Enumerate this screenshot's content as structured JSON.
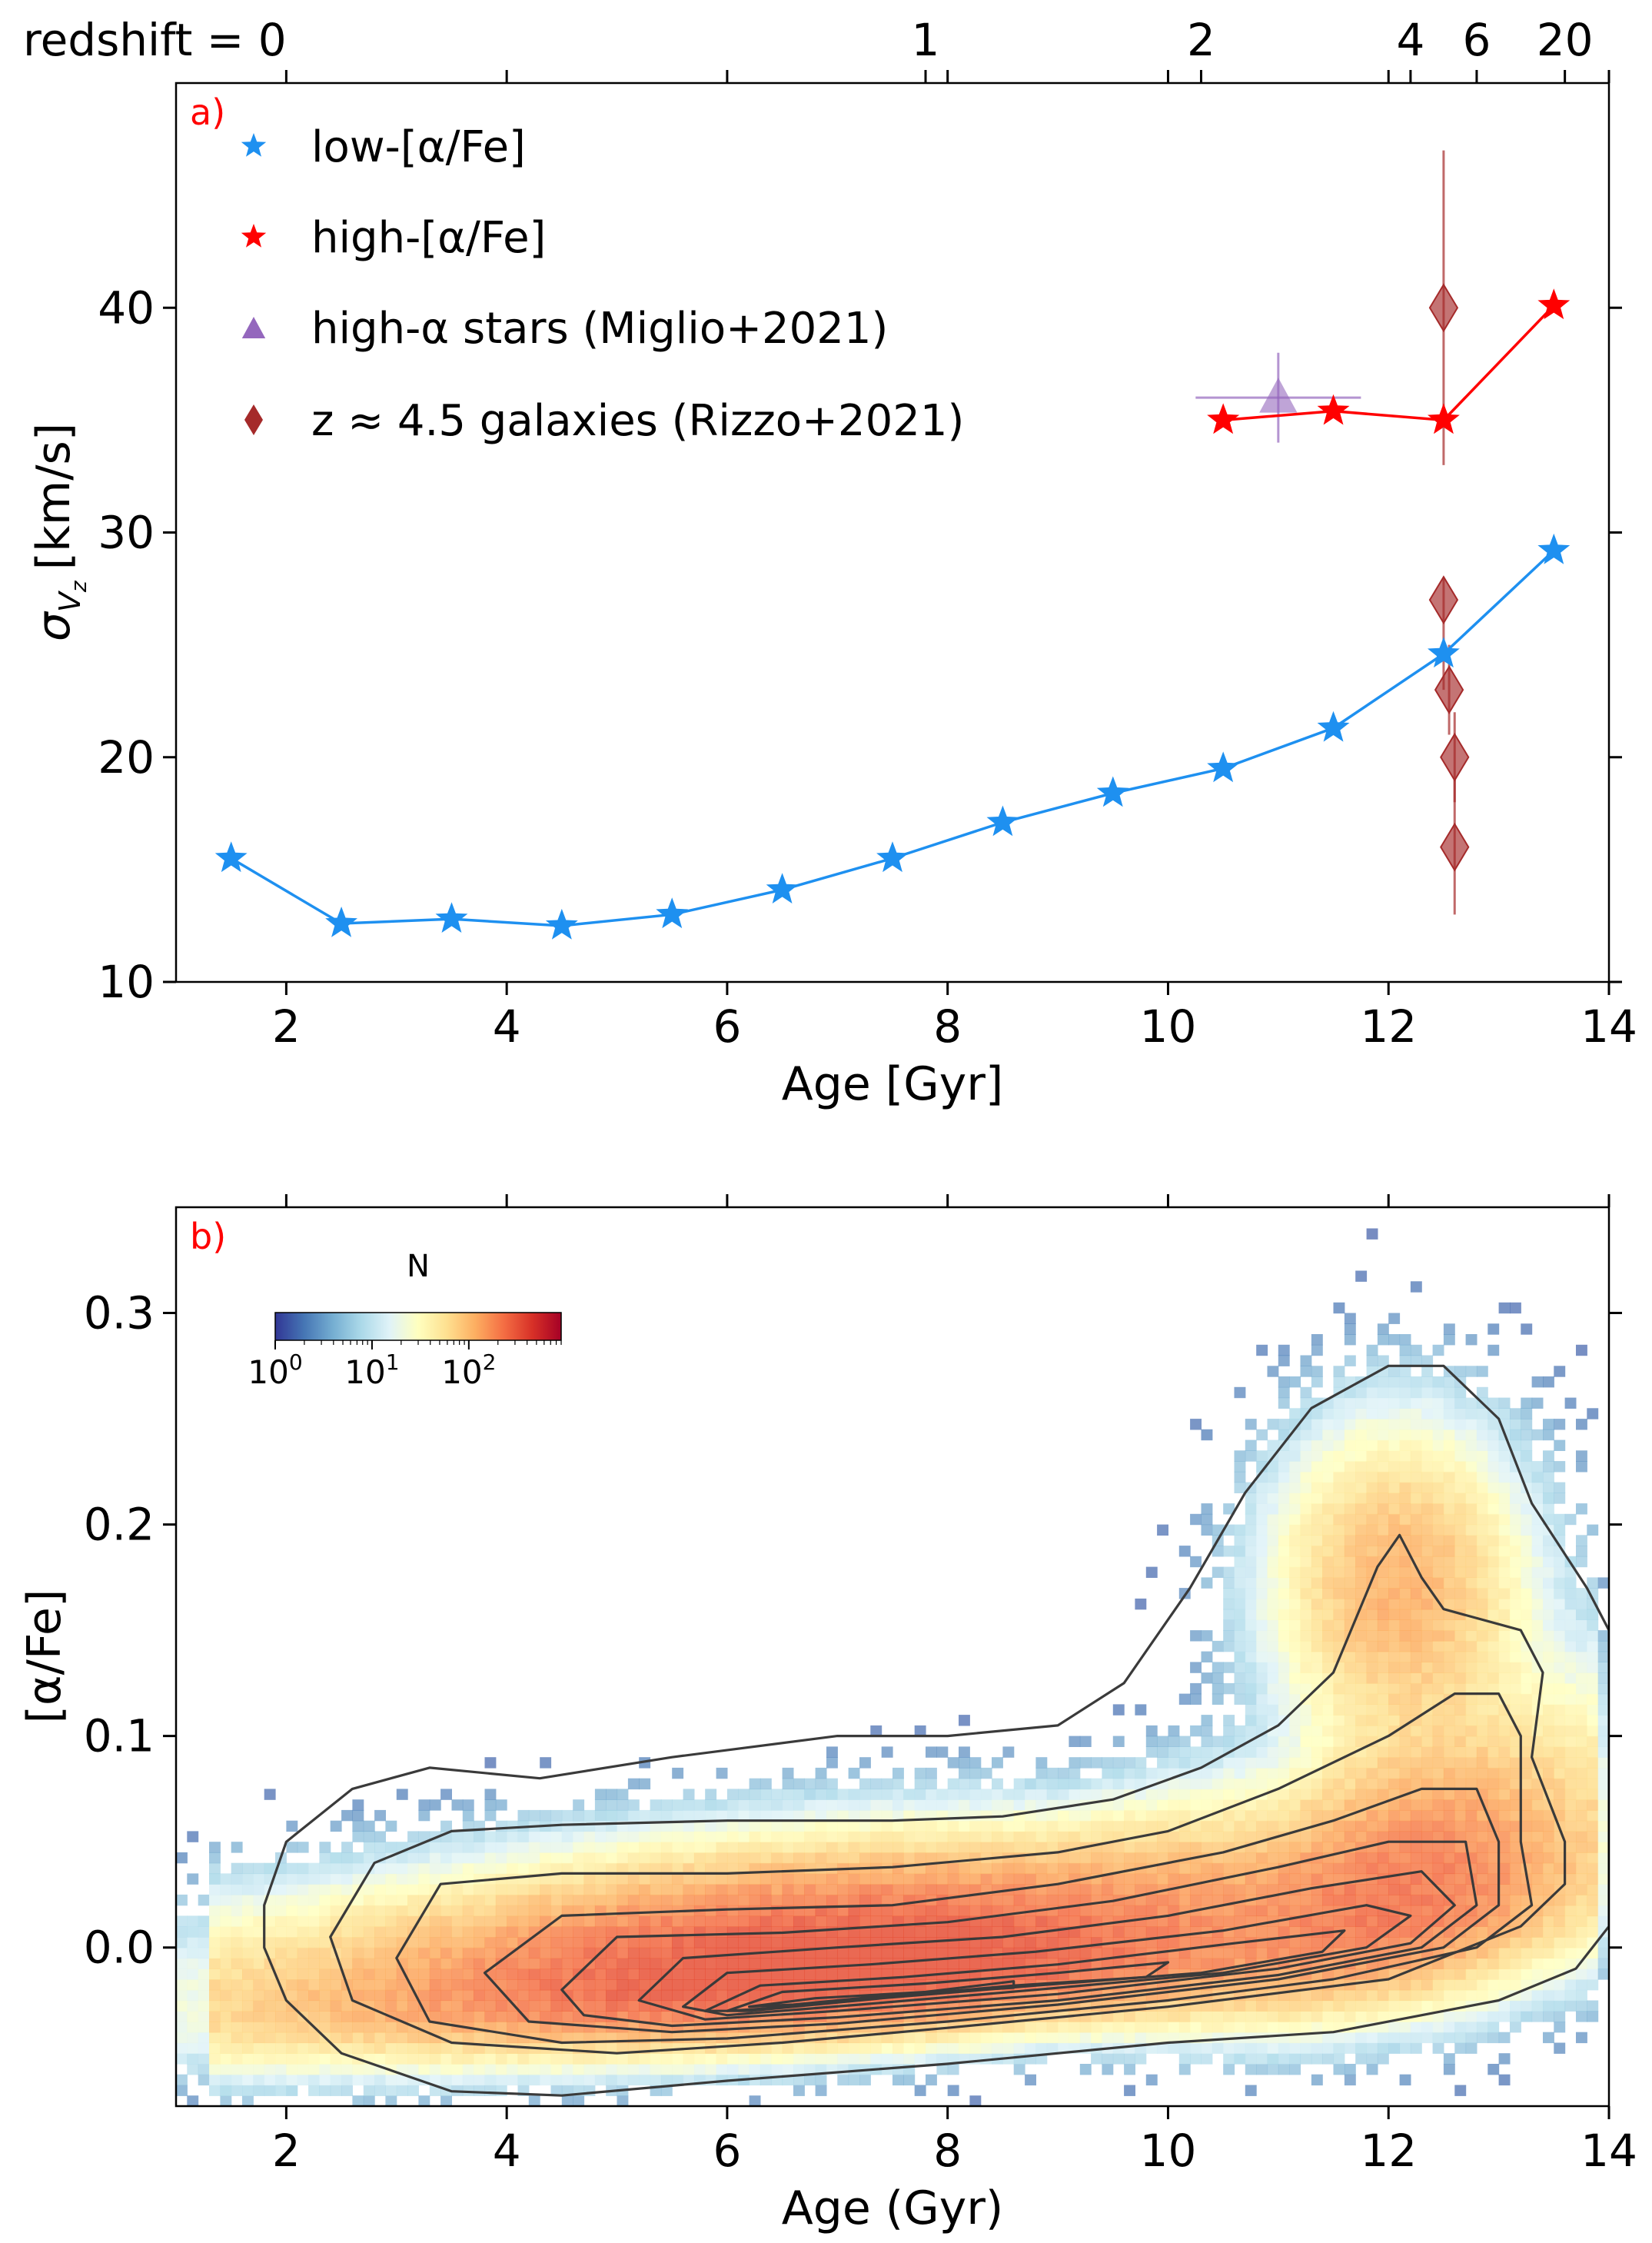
{
  "chart_data": [
    {
      "type": "line",
      "panel_label": "a)",
      "xlabel": "Age [Gyr]",
      "ylabel": "σ_Vz [km/s]",
      "ylabel_main": "σ",
      "ylabel_sub": "V",
      "ylabel_subsub": "z",
      "ylabel_unit": "[km/s]",
      "xlim": [
        1,
        14
      ],
      "ylim": [
        10,
        50
      ],
      "xticks": [
        2,
        4,
        6,
        8,
        10,
        12,
        14
      ],
      "yticks": [
        10,
        20,
        30,
        40
      ],
      "top_axis": {
        "label_prefix": "redshift = ",
        "ticks": [
          {
            "label": "0",
            "age": 1.0
          },
          {
            "label": "1",
            "age": 7.8
          },
          {
            "label": "2",
            "age": 10.3
          },
          {
            "label": "4",
            "age": 12.2
          },
          {
            "label": "6",
            "age": 12.8
          },
          {
            "label": "20",
            "age": 13.6
          }
        ]
      },
      "series": [
        {
          "name": "low-[α/Fe]",
          "color": "#1e90f0",
          "marker": "star",
          "x": [
            1.5,
            2.5,
            3.5,
            4.5,
            5.5,
            6.5,
            7.5,
            8.5,
            9.5,
            10.5,
            11.5,
            12.5,
            13.5
          ],
          "y": [
            15.5,
            12.6,
            12.8,
            12.5,
            13.0,
            14.1,
            15.5,
            17.1,
            18.4,
            19.5,
            21.3,
            24.6,
            29.2
          ]
        },
        {
          "name": "high-[α/Fe]",
          "color": "#ff0000",
          "marker": "star",
          "x": [
            10.5,
            11.5,
            12.5,
            13.5
          ],
          "y": [
            35.0,
            35.4,
            35.0,
            40.1
          ]
        },
        {
          "name": "high-α stars (Miglio+2021)",
          "color": "#9467bd",
          "marker": "triangle",
          "x": [
            11.0
          ],
          "y": [
            36.0
          ],
          "xerr": [
            0.75
          ],
          "yerr": [
            2.0
          ]
        },
        {
          "name": "z ≈ 4.5 galaxies (Rizzo+2021)",
          "color": "#a52a2a",
          "marker": "diamond",
          "points": [
            {
              "x": 12.5,
              "y": 40.0,
              "lo": 33.0,
              "hi": 47.0
            },
            {
              "x": 12.5,
              "y": 27.0,
              "lo": 23.0,
              "hi": 28.0
            },
            {
              "x": 12.55,
              "y": 23.0,
              "lo": 21.0,
              "hi": 25.0
            },
            {
              "x": 12.6,
              "y": 20.0,
              "lo": 18.0,
              "hi": 22.0
            },
            {
              "x": 12.6,
              "y": 16.0,
              "lo": 13.0,
              "hi": 19.0
            }
          ]
        }
      ]
    },
    {
      "type": "heatmap",
      "panel_label": "b)",
      "xlabel": "Age (Gyr)",
      "ylabel": "[α/Fe]",
      "xlim": [
        1,
        14
      ],
      "ylim": [
        -0.075,
        0.35
      ],
      "xticks": [
        2,
        4,
        6,
        8,
        10,
        12,
        14
      ],
      "yticks": [
        0.0,
        0.1,
        0.2,
        0.3
      ],
      "ytick_labels": [
        "0.0",
        "0.1",
        "0.2",
        "0.3"
      ],
      "colorbar": {
        "label": "N",
        "scale": "log",
        "colormap": "RdYlBu_r",
        "ticks": [
          {
            "base": "10",
            "exp": "0",
            "value": 1
          },
          {
            "base": "10",
            "exp": "1",
            "value": 10
          },
          {
            "base": "10",
            "exp": "2",
            "value": 100
          }
        ],
        "max": 900
      },
      "contour_color": "#3a3a3a",
      "contours": [
        [
          [
            1.8,
            0.02
          ],
          [
            2.0,
            0.05
          ],
          [
            2.6,
            0.075
          ],
          [
            3.3,
            0.085
          ],
          [
            4.3,
            0.08
          ],
          [
            5.5,
            0.09
          ],
          [
            7.0,
            0.1
          ],
          [
            8.0,
            0.1
          ],
          [
            9.0,
            0.105
          ],
          [
            9.6,
            0.125
          ],
          [
            10.2,
            0.17
          ],
          [
            10.7,
            0.215
          ],
          [
            11.3,
            0.255
          ],
          [
            12.0,
            0.275
          ],
          [
            12.5,
            0.275
          ],
          [
            13.0,
            0.25
          ],
          [
            13.3,
            0.21
          ],
          [
            13.8,
            0.17
          ],
          [
            14.0,
            0.15
          ],
          [
            14.0,
            0.01
          ],
          [
            13.7,
            -0.01
          ],
          [
            13.0,
            -0.025
          ],
          [
            11.5,
            -0.04
          ],
          [
            10.0,
            -0.045
          ],
          [
            8.0,
            -0.055
          ],
          [
            6.0,
            -0.063
          ],
          [
            4.5,
            -0.07
          ],
          [
            3.5,
            -0.068
          ],
          [
            2.5,
            -0.05
          ],
          [
            2.0,
            -0.025
          ],
          [
            1.8,
            0.0
          ],
          [
            1.8,
            0.02
          ]
        ],
        [
          [
            2.4,
            0.005
          ],
          [
            2.8,
            0.04
          ],
          [
            3.5,
            0.055
          ],
          [
            4.5,
            0.058
          ],
          [
            6.0,
            0.06
          ],
          [
            7.5,
            0.06
          ],
          [
            8.5,
            0.062
          ],
          [
            9.5,
            0.07
          ],
          [
            10.3,
            0.085
          ],
          [
            11.0,
            0.105
          ],
          [
            11.5,
            0.13
          ],
          [
            11.9,
            0.18
          ],
          [
            12.1,
            0.195
          ],
          [
            12.3,
            0.175
          ],
          [
            12.5,
            0.16
          ],
          [
            13.2,
            0.15
          ],
          [
            13.4,
            0.13
          ],
          [
            13.3,
            0.09
          ],
          [
            13.6,
            0.05
          ],
          [
            13.6,
            0.03
          ],
          [
            13.2,
            0.01
          ],
          [
            12.0,
            -0.015
          ],
          [
            10.0,
            -0.028
          ],
          [
            8.0,
            -0.038
          ],
          [
            6.5,
            -0.045
          ],
          [
            5.0,
            -0.05
          ],
          [
            3.5,
            -0.045
          ],
          [
            2.6,
            -0.025
          ],
          [
            2.4,
            0.005
          ]
        ],
        [
          [
            3.0,
            -0.005
          ],
          [
            3.4,
            0.03
          ],
          [
            4.5,
            0.035
          ],
          [
            6.0,
            0.035
          ],
          [
            7.5,
            0.038
          ],
          [
            9.0,
            0.045
          ],
          [
            10.0,
            0.055
          ],
          [
            11.0,
            0.075
          ],
          [
            12.0,
            0.1
          ],
          [
            12.6,
            0.12
          ],
          [
            13.0,
            0.12
          ],
          [
            13.2,
            0.1
          ],
          [
            13.2,
            0.05
          ],
          [
            13.3,
            0.02
          ],
          [
            12.8,
            0.0
          ],
          [
            11.5,
            -0.015
          ],
          [
            10.0,
            -0.025
          ],
          [
            8.0,
            -0.035
          ],
          [
            6.0,
            -0.043
          ],
          [
            4.5,
            -0.045
          ],
          [
            3.3,
            -0.035
          ],
          [
            3.0,
            -0.005
          ]
        ],
        [
          [
            3.8,
            -0.012
          ],
          [
            4.5,
            0.015
          ],
          [
            6.0,
            0.018
          ],
          [
            7.5,
            0.02
          ],
          [
            9.0,
            0.03
          ],
          [
            10.5,
            0.045
          ],
          [
            11.5,
            0.06
          ],
          [
            12.3,
            0.075
          ],
          [
            12.8,
            0.075
          ],
          [
            13.0,
            0.05
          ],
          [
            13.0,
            0.02
          ],
          [
            12.5,
            0.0
          ],
          [
            11.0,
            -0.015
          ],
          [
            9.0,
            -0.027
          ],
          [
            7.0,
            -0.036
          ],
          [
            5.5,
            -0.04
          ],
          [
            4.2,
            -0.035
          ],
          [
            3.8,
            -0.012
          ]
        ],
        [
          [
            4.5,
            -0.02
          ],
          [
            5.0,
            0.005
          ],
          [
            6.5,
            0.007
          ],
          [
            8.0,
            0.012
          ],
          [
            9.5,
            0.022
          ],
          [
            11.0,
            0.038
          ],
          [
            12.0,
            0.05
          ],
          [
            12.7,
            0.05
          ],
          [
            12.8,
            0.02
          ],
          [
            12.3,
            0.0
          ],
          [
            11.0,
            -0.013
          ],
          [
            9.0,
            -0.025
          ],
          [
            7.0,
            -0.033
          ],
          [
            5.5,
            -0.037
          ],
          [
            4.7,
            -0.032
          ],
          [
            4.5,
            -0.02
          ]
        ],
        [
          [
            5.2,
            -0.025
          ],
          [
            5.6,
            -0.005
          ],
          [
            7.0,
            0.0
          ],
          [
            8.5,
            0.005
          ],
          [
            10.0,
            0.015
          ],
          [
            11.3,
            0.028
          ],
          [
            12.3,
            0.036
          ],
          [
            12.6,
            0.02
          ],
          [
            12.2,
            0.002
          ],
          [
            11.0,
            -0.01
          ],
          [
            9.0,
            -0.022
          ],
          [
            7.0,
            -0.03
          ],
          [
            5.8,
            -0.034
          ],
          [
            5.2,
            -0.025
          ]
        ],
        [
          [
            5.6,
            -0.028
          ],
          [
            6.0,
            -0.012
          ],
          [
            7.3,
            -0.008
          ],
          [
            8.8,
            -0.002
          ],
          [
            10.5,
            0.008
          ],
          [
            11.8,
            0.02
          ],
          [
            12.2,
            0.015
          ],
          [
            11.8,
            0.0
          ],
          [
            10.5,
            -0.012
          ],
          [
            8.8,
            -0.02
          ],
          [
            7.2,
            -0.027
          ],
          [
            6.0,
            -0.032
          ],
          [
            5.6,
            -0.028
          ]
        ],
        [
          [
            5.8,
            -0.03
          ],
          [
            6.3,
            -0.018
          ],
          [
            7.6,
            -0.014
          ],
          [
            9.0,
            -0.008
          ],
          [
            10.6,
            0.002
          ],
          [
            11.6,
            0.008
          ],
          [
            11.4,
            -0.002
          ],
          [
            10.3,
            -0.012
          ],
          [
            8.8,
            -0.018
          ],
          [
            7.4,
            -0.024
          ],
          [
            6.2,
            -0.03
          ],
          [
            5.8,
            -0.03
          ]
        ],
        [
          [
            6.0,
            -0.03
          ],
          [
            6.5,
            -0.021
          ],
          [
            7.8,
            -0.017
          ],
          [
            9.0,
            -0.012
          ],
          [
            10.0,
            -0.007
          ],
          [
            9.8,
            -0.014
          ],
          [
            8.6,
            -0.018
          ],
          [
            7.3,
            -0.024
          ],
          [
            6.3,
            -0.029
          ],
          [
            6.0,
            -0.03
          ]
        ],
        [
          [
            6.2,
            -0.028
          ],
          [
            6.8,
            -0.024
          ],
          [
            7.8,
            -0.021
          ],
          [
            8.6,
            -0.016
          ],
          [
            8.6,
            -0.019
          ],
          [
            7.6,
            -0.022
          ],
          [
            6.6,
            -0.027
          ],
          [
            6.2,
            -0.028
          ]
        ]
      ]
    }
  ]
}
